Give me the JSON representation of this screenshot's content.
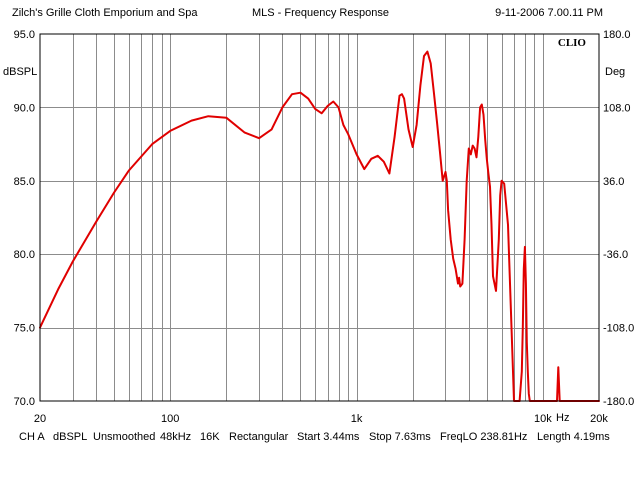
{
  "header": {
    "left": "Zilch's Grille Cloth Emporium and Spa",
    "center": "MLS - Frequency Response",
    "right": "9-11-2006 7.00.11 PM"
  },
  "brand": "CLIO",
  "footer": {
    "channel": "CH A",
    "unit": "dBSPL",
    "smoothing": "Unsmoothed",
    "rate": "48kHz",
    "size": "16K",
    "window": "Rectangular",
    "start": "Start 3.44ms",
    "stop": "Stop 7.63ms",
    "freqlo": "FreqLO 238.81Hz",
    "length": "Length 4.19ms"
  },
  "chart_data": {
    "type": "line",
    "xscale": "log",
    "xlim": [
      20,
      20000
    ],
    "ylim": [
      70,
      95
    ],
    "y2lim": [
      -180,
      180
    ],
    "ylabel": "dBSPL",
    "y2label": "Deg",
    "xunit": "Hz",
    "grid": true,
    "y_ticks": [
      {
        "value": 95,
        "label": "95.0"
      },
      {
        "value": 90,
        "label": "90.0"
      },
      {
        "value": 85,
        "label": "85.0"
      },
      {
        "value": 80,
        "label": "80.0"
      },
      {
        "value": 75,
        "label": "75.0"
      },
      {
        "value": 70,
        "label": "70.0"
      }
    ],
    "y2_ticks": [
      {
        "value": 180,
        "label": "180.0"
      },
      {
        "value": 108,
        "label": "108.0"
      },
      {
        "value": 36,
        "label": "36.0"
      },
      {
        "value": -36,
        "label": "-36.0"
      },
      {
        "value": -108,
        "label": "-108.0"
      },
      {
        "value": -180,
        "label": "-180.0"
      }
    ],
    "x_ticks": [
      {
        "value": 20,
        "label": "20"
      },
      {
        "value": 100,
        "label": "100"
      },
      {
        "value": 1000,
        "label": "1k"
      },
      {
        "value": 10000,
        "label": "10k"
      },
      {
        "value": 20000,
        "label": "20k"
      }
    ],
    "series": [
      {
        "color": "#e00000",
        "x": [
          20,
          25,
          30,
          40,
          50,
          60,
          80,
          100,
          130,
          160,
          200,
          250,
          300,
          350,
          400,
          450,
          500,
          550,
          600,
          650,
          700,
          750,
          800,
          850,
          900,
          1000,
          1100,
          1200,
          1300,
          1400,
          1500,
          1600,
          1700,
          1750,
          1800,
          1900,
          2000,
          2100,
          2200,
          2300,
          2400,
          2500,
          2600,
          2700,
          2800,
          2900,
          3000,
          3050,
          3100,
          3200,
          3300,
          3400,
          3500,
          3550,
          3600,
          3700,
          3800,
          3900,
          4000,
          4100,
          4200,
          4300,
          4400,
          4500,
          4600,
          4700,
          4800,
          4900,
          5000,
          5100,
          5200,
          5300,
          5400,
          5600,
          5800,
          5900,
          6000,
          6200,
          6500,
          7000,
          7500,
          7700,
          7800,
          7900,
          8000,
          8100,
          8200,
          8300,
          8400,
          8500,
          8700,
          9000,
          11000,
          11900,
          12100,
          12300,
          12500,
          14000,
          20000
        ],
        "values": [
          75.0,
          77.6,
          79.5,
          82.2,
          84.2,
          85.7,
          87.5,
          88.4,
          89.1,
          89.4,
          89.3,
          88.3,
          87.9,
          88.5,
          90.0,
          90.9,
          91.0,
          90.6,
          89.9,
          89.6,
          90.1,
          90.4,
          90.0,
          88.8,
          88.2,
          86.8,
          85.8,
          86.5,
          86.7,
          86.3,
          85.5,
          88.0,
          90.8,
          90.9,
          90.6,
          88.5,
          87.3,
          88.8,
          91.5,
          93.5,
          93.8,
          93.0,
          91.0,
          89.0,
          87.0,
          85.0,
          85.6,
          85.0,
          83.0,
          81.0,
          79.7,
          79.0,
          78.0,
          78.4,
          77.8,
          78.0,
          81.0,
          85.0,
          87.2,
          86.8,
          87.4,
          87.2,
          86.6,
          88.0,
          90.0,
          90.2,
          89.5,
          87.8,
          86.5,
          85.5,
          84.6,
          82.0,
          78.5,
          77.5,
          81.0,
          84.0,
          85.0,
          84.8,
          82.0,
          70.0,
          70.0,
          72.0,
          75.0,
          79.0,
          80.5,
          78.0,
          74.0,
          72.0,
          70.5,
          70.0,
          70.0,
          70.0,
          70.0,
          70.0,
          72.3,
          70.0,
          70.0,
          70.0,
          70.0
        ]
      }
    ]
  }
}
